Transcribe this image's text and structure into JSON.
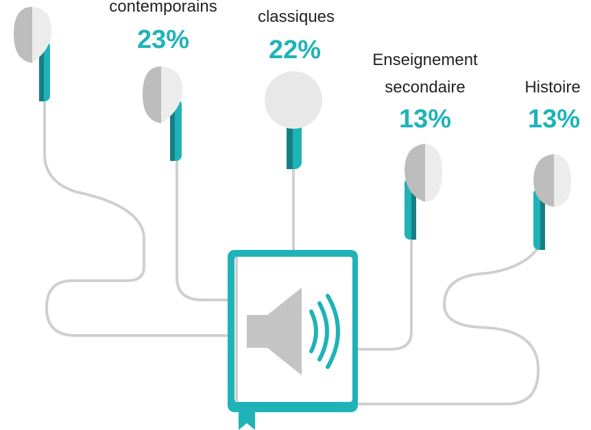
{
  "items": [
    {
      "label": [
        "contemporains"
      ],
      "value": "23%"
    },
    {
      "label": [
        "classiques"
      ],
      "value": "22%"
    },
    {
      "label": [
        "Enseignement",
        "secondaire"
      ],
      "value": "13%"
    },
    {
      "label": [
        "Histoire"
      ],
      "value": "13%"
    }
  ]
}
